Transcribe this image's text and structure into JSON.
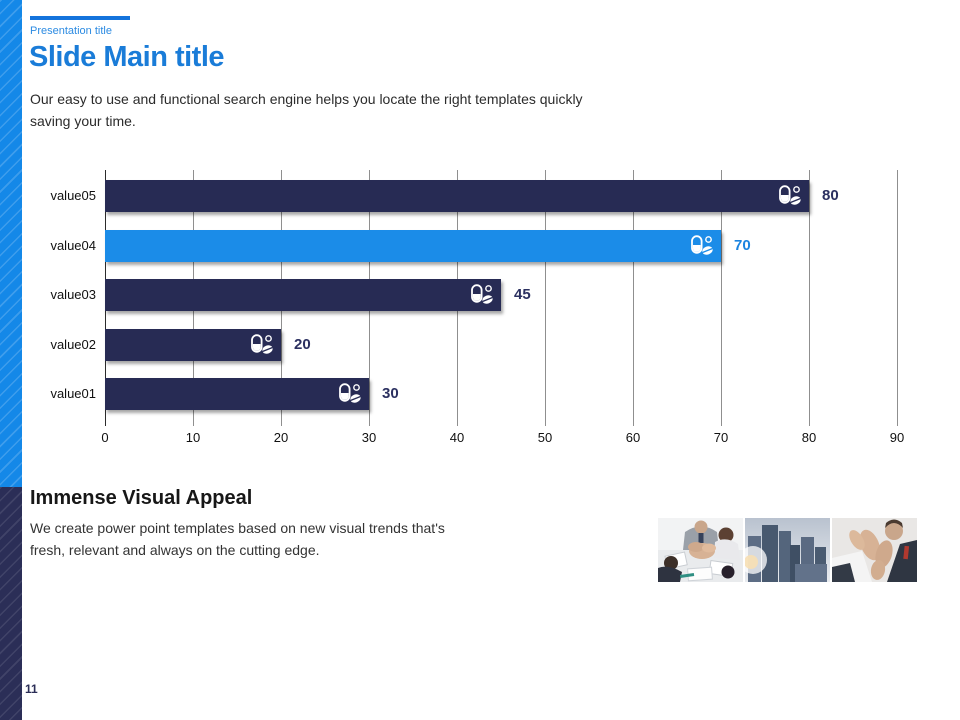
{
  "header": {
    "eyebrow": "Presentation title",
    "title": "Slide Main title",
    "intro_line1": "Our easy to use and functional search engine helps you locate the right templates quickly",
    "intro_line2": "saving your time."
  },
  "section": {
    "heading": "Immense Visual Appeal",
    "body_line1": "We create power point templates based on new visual trends that's",
    "body_line2": "fresh, relevant and always on the cutting edge."
  },
  "page": {
    "number": "11"
  },
  "colors": {
    "accent_blue": "#1488e8",
    "navy": "#272b54",
    "title_blue": "#1a7cd8",
    "gridline": "#8f8f8f",
    "zero_axis": "#2c2c2c"
  },
  "icons": {
    "bar_icon": "pills-icon",
    "photo_names": [
      "team-hands-photo",
      "city-skyline-photo",
      "applause-photo"
    ]
  },
  "chart_data": {
    "type": "bar",
    "orientation": "horizontal",
    "title": "",
    "xlabel": "",
    "ylabel": "",
    "categories": [
      "value05",
      "value04",
      "value03",
      "value02",
      "value01"
    ],
    "values": [
      80,
      70,
      45,
      20,
      30
    ],
    "bar_colors": [
      "#272b54",
      "#1b8ce8",
      "#272b54",
      "#272b54",
      "#272b54"
    ],
    "value_label_colors": [
      "#2b3060",
      "#1b84e0",
      "#2b3060",
      "#2b3060",
      "#2b3060"
    ],
    "xticks": [
      0,
      10,
      20,
      30,
      40,
      50,
      60,
      70,
      80,
      90
    ],
    "xlim": [
      0,
      90
    ],
    "grid": true,
    "legend": false
  }
}
